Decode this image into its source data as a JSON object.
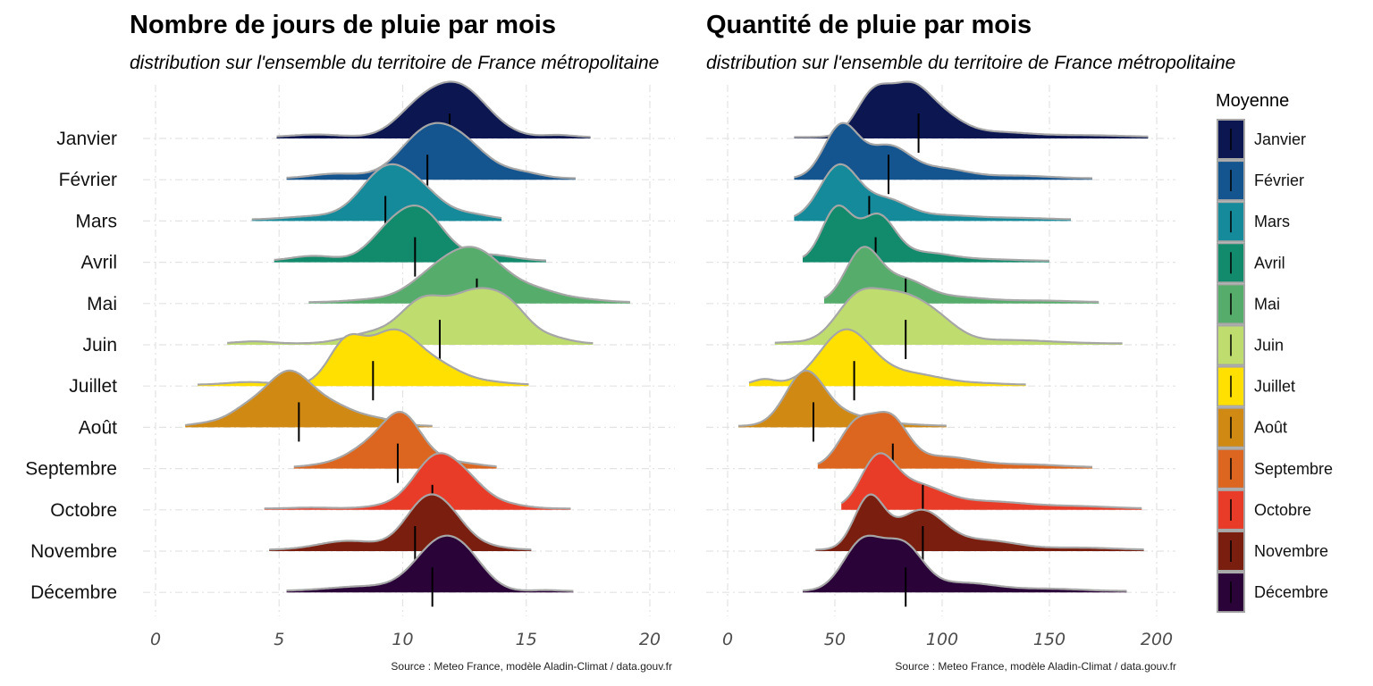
{
  "chart_data": [
    {
      "type": "ridgeline",
      "title": "Nombre de jours de pluie par mois",
      "subtitle": "distribution sur l'ensemble du territoire de France métropolitaine",
      "caption": "Source : Meteo France, modèle Aladin-Climat / data.gouv.fr",
      "xlim": [
        0,
        21
      ],
      "xticks": [
        0,
        5,
        10,
        15,
        20
      ],
      "categories": [
        "Janvier",
        "Février",
        "Mars",
        "Avril",
        "Mai",
        "Juin",
        "Juillet",
        "Août",
        "Septembre",
        "Octobre",
        "Novembre",
        "Décembre"
      ],
      "means": [
        11.9,
        11.0,
        9.3,
        10.5,
        13.0,
        11.5,
        8.8,
        5.8,
        9.8,
        11.2,
        10.5,
        11.2
      ],
      "series": [
        {
          "category": "Janvier",
          "range": [
            4.9,
            17.6
          ],
          "peaks": [
            [
              12.2,
              1.0,
              1.2
            ],
            [
              10.5,
              0.35,
              0.9
            ],
            [
              6.5,
              0.05,
              1.0
            ],
            [
              16.3,
              0.04,
              0.6
            ]
          ]
        },
        {
          "category": "Février",
          "range": [
            5.3,
            17.0
          ],
          "peaks": [
            [
              11.0,
              1.0,
              1.1
            ],
            [
              12.6,
              0.55,
              1.0
            ],
            [
              7.3,
              0.1,
              1.0
            ],
            [
              14.8,
              0.12,
              0.8
            ]
          ]
        },
        {
          "category": "Mars",
          "range": [
            3.9,
            14.0
          ],
          "peaks": [
            [
              9.3,
              1.0,
              1.0
            ],
            [
              10.8,
              0.45,
              0.9
            ],
            [
              6.5,
              0.07,
              1.2
            ],
            [
              12.8,
              0.1,
              0.8
            ]
          ]
        },
        {
          "category": "Avril",
          "range": [
            4.8,
            15.8
          ],
          "peaks": [
            [
              10.7,
              1.0,
              0.95
            ],
            [
              9.3,
              0.4,
              0.8
            ],
            [
              6.4,
              0.1,
              0.9
            ],
            [
              13.5,
              0.12,
              1.0
            ]
          ]
        },
        {
          "category": "Mai",
          "range": [
            6.2,
            19.2
          ],
          "peaks": [
            [
              12.9,
              1.0,
              1.2
            ],
            [
              11.1,
              0.35,
              1.0
            ],
            [
              8.8,
              0.05,
              1.0
            ],
            [
              15.5,
              0.2,
              1.0
            ],
            [
              17.5,
              0.04,
              0.8
            ]
          ]
        },
        {
          "category": "Juin",
          "range": [
            2.9,
            17.7
          ],
          "peaks": [
            [
              12.9,
              0.68,
              1.0
            ],
            [
              10.8,
              0.58,
              0.9
            ],
            [
              14.4,
              0.4,
              0.8
            ],
            [
              8.7,
              0.14,
              1.0
            ],
            [
              4.0,
              0.03,
              0.7
            ],
            [
              16.1,
              0.07,
              0.7
            ]
          ]
        },
        {
          "category": "Juillet",
          "range": [
            1.7,
            15.1
          ],
          "peaks": [
            [
              9.6,
              0.78,
              1.0
            ],
            [
              7.7,
              0.6,
              0.7
            ],
            [
              11.5,
              0.25,
              1.0
            ],
            [
              3.8,
              0.04,
              0.9
            ],
            [
              13.7,
              0.03,
              0.8
            ]
          ]
        },
        {
          "category": "Août",
          "range": [
            1.2,
            11.2
          ],
          "peaks": [
            [
              5.4,
              1.0,
              0.9
            ],
            [
              7.2,
              0.35,
              0.9
            ],
            [
              3.7,
              0.3,
              0.8
            ],
            [
              9.0,
              0.12,
              0.8
            ],
            [
              2.0,
              0.04,
              0.6
            ]
          ]
        },
        {
          "category": "Septembre",
          "range": [
            5.6,
            13.8
          ],
          "peaks": [
            [
              10.0,
              1.0,
              0.75
            ],
            [
              8.7,
              0.45,
              0.9
            ],
            [
              11.5,
              0.15,
              0.9
            ],
            [
              6.9,
              0.05,
              0.8
            ],
            [
              13.0,
              0.03,
              0.6
            ]
          ]
        },
        {
          "category": "Octobre",
          "range": [
            4.4,
            16.8
          ],
          "peaks": [
            [
              11.3,
              1.0,
              0.85
            ],
            [
              12.6,
              0.5,
              0.8
            ],
            [
              9.8,
              0.08,
              1.0
            ],
            [
              14.2,
              0.08,
              0.8
            ],
            [
              6.3,
              0.02,
              0.8
            ]
          ]
        },
        {
          "category": "Novembre",
          "range": [
            4.6,
            15.2
          ],
          "peaks": [
            [
              10.9,
              1.0,
              0.85
            ],
            [
              12.0,
              0.5,
              0.8
            ],
            [
              7.8,
              0.2,
              1.2
            ],
            [
              13.7,
              0.05,
              0.7
            ]
          ]
        },
        {
          "category": "Décembre",
          "range": [
            5.3,
            16.9
          ],
          "peaks": [
            [
              11.5,
              1.0,
              1.0
            ],
            [
              12.7,
              0.4,
              0.8
            ],
            [
              8.5,
              0.1,
              1.5
            ],
            [
              15.8,
              0.02,
              0.5
            ]
          ]
        }
      ]
    },
    {
      "type": "ridgeline",
      "title": "Quantité de pluie par mois",
      "subtitle": "distribution sur l'ensemble du territoire de France métropolitaine",
      "caption": "Source : Meteo France, modèle Aladin-Climat / data.gouv.fr",
      "xlim": [
        -10,
        205
      ],
      "xticks": [
        0,
        50,
        100,
        150,
        200
      ],
      "categories": [
        "Janvier",
        "Février",
        "Mars",
        "Avril",
        "Mai",
        "Juin",
        "Juillet",
        "Août",
        "Septembre",
        "Octobre",
        "Novembre",
        "Décembre"
      ],
      "means": [
        89,
        75,
        66,
        69,
        83,
        83,
        59,
        40,
        77,
        91,
        91,
        83
      ],
      "series": [
        {
          "category": "Janvier",
          "range": [
            31,
            196
          ],
          "peaks": [
            [
              68,
              0.9,
              8
            ],
            [
              85,
              0.95,
              9
            ],
            [
              100,
              0.4,
              10
            ],
            [
              125,
              0.1,
              15
            ],
            [
              165,
              0.04,
              20
            ]
          ]
        },
        {
          "category": "Février",
          "range": [
            31,
            170
          ],
          "peaks": [
            [
              53,
              1.0,
              8
            ],
            [
              75,
              0.6,
              10
            ],
            [
              100,
              0.18,
              12
            ],
            [
              135,
              0.05,
              15
            ]
          ]
        },
        {
          "category": "Mars",
          "range": [
            31,
            160
          ],
          "peaks": [
            [
              52,
              1.0,
              9
            ],
            [
              74,
              0.35,
              10
            ],
            [
              100,
              0.08,
              15
            ],
            [
              135,
              0.03,
              15
            ]
          ]
        },
        {
          "category": "Avril",
          "range": [
            35,
            150
          ],
          "peaks": [
            [
              51,
              1.0,
              7
            ],
            [
              70,
              0.85,
              8
            ],
            [
              92,
              0.15,
              12
            ],
            [
              120,
              0.03,
              15
            ]
          ]
        },
        {
          "category": "Mai",
          "range": [
            45,
            173
          ],
          "peaks": [
            [
              63,
              1.0,
              8
            ],
            [
              82,
              0.4,
              10
            ],
            [
              105,
              0.1,
              15
            ],
            [
              145,
              0.03,
              15
            ]
          ]
        },
        {
          "category": "Juin",
          "range": [
            22,
            184
          ],
          "peaks": [
            [
              60,
              0.7,
              10
            ],
            [
              80,
              0.75,
              12
            ],
            [
              98,
              0.3,
              10
            ],
            [
              130,
              0.06,
              20
            ],
            [
              30,
              0.02,
              8
            ]
          ]
        },
        {
          "category": "Juillet",
          "range": [
            10,
            139
          ],
          "peaks": [
            [
              55,
              1.0,
              12
            ],
            [
              17,
              0.1,
              5
            ],
            [
              85,
              0.2,
              15
            ],
            [
              120,
              0.02,
              10
            ]
          ]
        },
        {
          "category": "Août",
          "range": [
            5,
            102
          ],
          "peaks": [
            [
              36,
              1.0,
              9
            ],
            [
              55,
              0.2,
              12
            ],
            [
              80,
              0.03,
              12
            ]
          ]
        },
        {
          "category": "Septembre",
          "range": [
            42,
            170
          ],
          "peaks": [
            [
              60,
              0.8,
              8
            ],
            [
              76,
              0.85,
              8
            ],
            [
              100,
              0.2,
              15
            ],
            [
              140,
              0.05,
              15
            ]
          ]
        },
        {
          "category": "Octobre",
          "range": [
            53,
            193
          ],
          "peaks": [
            [
              70,
              1.0,
              8
            ],
            [
              88,
              0.45,
              12
            ],
            [
              120,
              0.15,
              20
            ],
            [
              165,
              0.04,
              15
            ]
          ]
        },
        {
          "category": "Novembre",
          "range": [
            41,
            194
          ],
          "peaks": [
            [
              66,
              1.0,
              7
            ],
            [
              90,
              0.75,
              11
            ],
            [
              120,
              0.18,
              15
            ],
            [
              165,
              0.04,
              15
            ]
          ]
        },
        {
          "category": "Décembre",
          "range": [
            35,
            186
          ],
          "peaks": [
            [
              63,
              0.9,
              9
            ],
            [
              82,
              0.8,
              9
            ],
            [
              110,
              0.15,
              15
            ],
            [
              150,
              0.04,
              15
            ]
          ]
        }
      ]
    }
  ],
  "legend": {
    "title": "Moyenne",
    "items": [
      {
        "label": "Janvier",
        "color": "#0c1650"
      },
      {
        "label": "Février",
        "color": "#15558f"
      },
      {
        "label": "Mars",
        "color": "#148a9a"
      },
      {
        "label": "Avril",
        "color": "#128a6c"
      },
      {
        "label": "Mai",
        "color": "#56ac6b"
      },
      {
        "label": "Juin",
        "color": "#bfdd6e"
      },
      {
        "label": "Juillet",
        "color": "#ffe000"
      },
      {
        "label": "Août",
        "color": "#d08a14"
      },
      {
        "label": "Septembre",
        "color": "#dc6620"
      },
      {
        "label": "Octobre",
        "color": "#e83c28"
      },
      {
        "label": "Novembre",
        "color": "#7a1f10"
      },
      {
        "label": "Décembre",
        "color": "#2a0338"
      }
    ]
  }
}
